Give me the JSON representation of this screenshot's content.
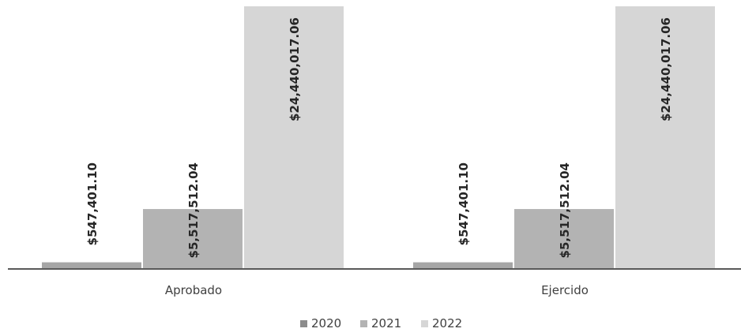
{
  "chart_data": {
    "type": "bar",
    "categories": [
      "Aprobado",
      "Ejercido"
    ],
    "series": [
      {
        "name": "2020",
        "values": [
          547401.1,
          547401.1
        ],
        "labels": [
          "$547,401.10",
          "$547,401.10"
        ],
        "color": "#a6a6a6"
      },
      {
        "name": "2021",
        "values": [
          5517512.04,
          5517512.04
        ],
        "labels": [
          "$5,517,512.04",
          "$5,517,512.04"
        ],
        "color": "#b3b3b3"
      },
      {
        "name": "2022",
        "values": [
          24440017.06,
          24440017.06
        ],
        "labels": [
          "$24,440,017.06",
          "$24,440,017.06"
        ],
        "color": "#d6d6d6"
      }
    ],
    "ylim": [
      0,
      24440017.06
    ],
    "grid": false,
    "legend_position": "bottom",
    "axis_color": "#595959"
  }
}
